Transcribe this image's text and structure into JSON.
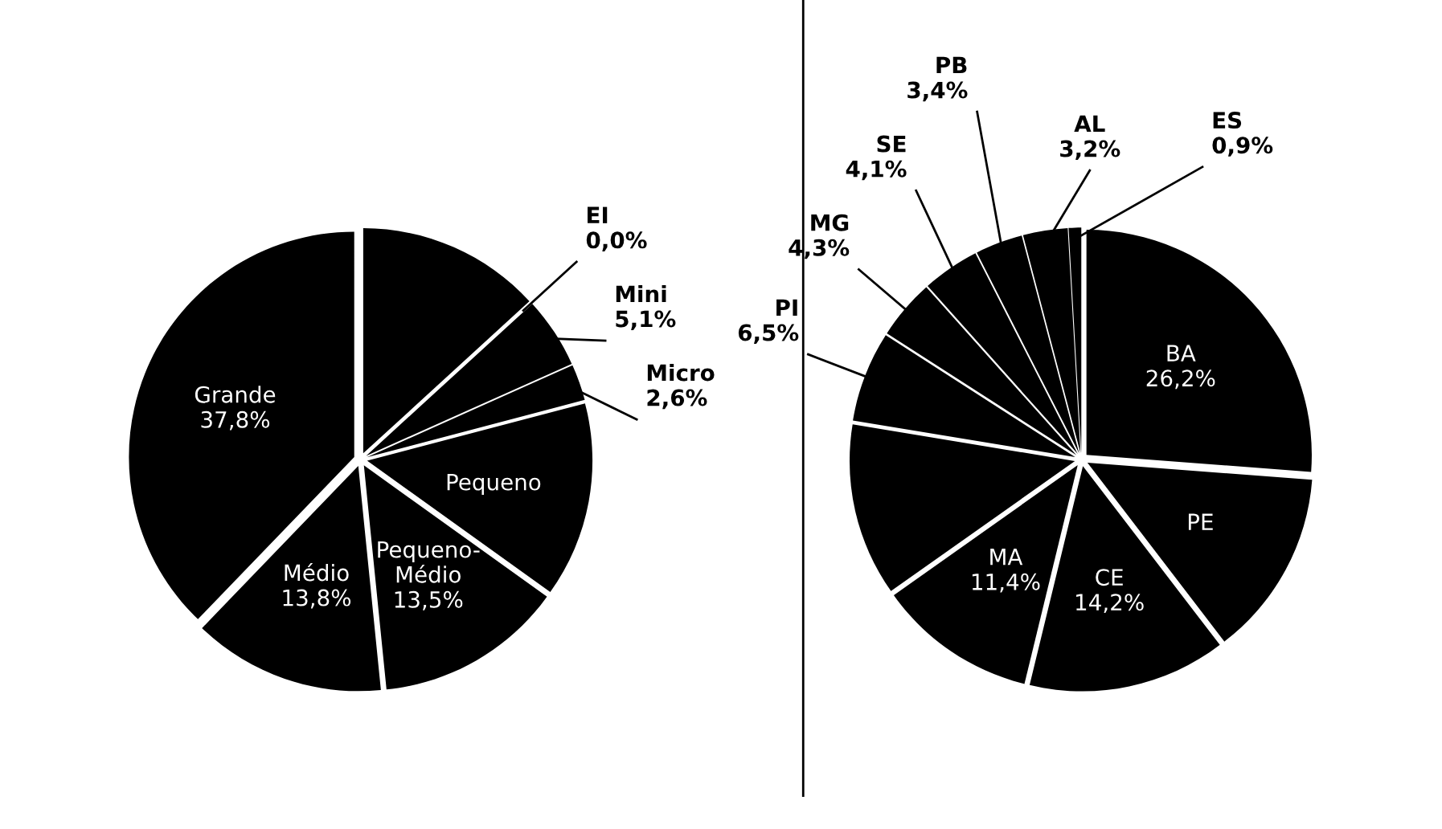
{
  "chart_data": [
    {
      "type": "pie",
      "categories": [
        null,
        "EI",
        "Mini",
        "Micro",
        "Pequeno",
        "Pequeno-Médio",
        "Médio",
        "Grande"
      ],
      "values": [
        13.2,
        0.0,
        5.1,
        2.6,
        14.0,
        13.5,
        13.8,
        37.8
      ],
      "value_labels": [
        null,
        "0,0%",
        "5,1%",
        "2,6%",
        null,
        "13,5%",
        "13,8%",
        "37,8%"
      ],
      "colors": [
        "#000000",
        "#000000",
        "#000000",
        "#000000",
        "#000000",
        "#000000",
        "#000000",
        "#000000"
      ]
    },
    {
      "type": "pie",
      "categories": [
        "BA",
        "PE",
        "CE",
        "MA",
        null,
        "PI",
        "MG",
        "SE",
        "PB",
        "AL",
        "ES"
      ],
      "values": [
        26.2,
        13.4,
        14.2,
        11.4,
        12.4,
        6.5,
        4.3,
        4.1,
        3.4,
        3.2,
        0.9
      ],
      "value_labels": [
        "26,2%",
        null,
        "14,2%",
        "11,4%",
        null,
        "6,5%",
        "4,3%",
        "4,1%",
        "3,4%",
        "3,2%",
        "0,9%"
      ],
      "colors": [
        "#000000",
        "#000000",
        "#000000",
        "#000000",
        "#000000",
        "#000000",
        "#000000",
        "#000000",
        "#000000",
        "#000000",
        "#000000"
      ]
    }
  ]
}
